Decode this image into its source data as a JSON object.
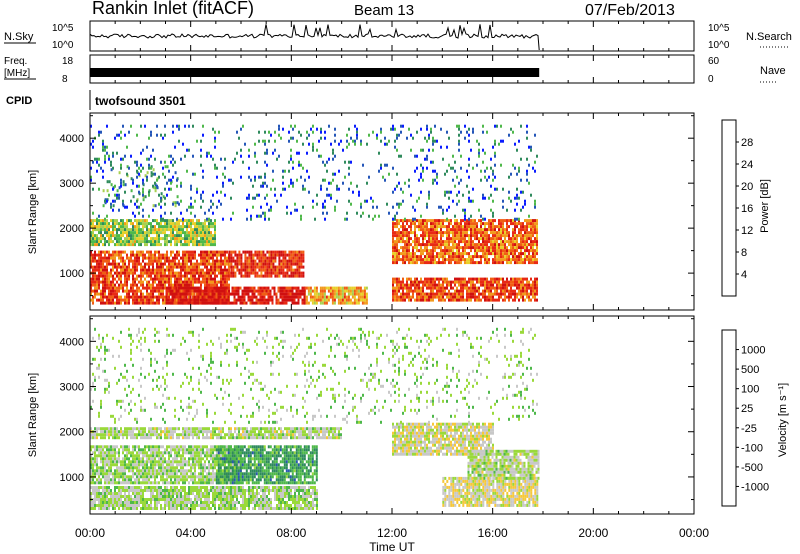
{
  "header": {
    "title": "Rankin Inlet (fitACF)",
    "beam": "Beam 13",
    "date": "07/Feb/2013"
  },
  "time_axis": {
    "label": "Time UT",
    "ticks": [
      "00:00",
      "04:00",
      "08:00",
      "12:00",
      "16:00",
      "20:00",
      "00:00"
    ],
    "tick_hours": [
      0,
      4,
      8,
      12,
      16,
      20,
      24
    ],
    "data_end_hour": 17.85
  },
  "panels": {
    "nsky": {
      "left_label": "N.Sky",
      "right_label": "N.Search",
      "left_ticks": [
        "10^5",
        "10^0"
      ],
      "right_ticks": [
        "10^5",
        "10^0"
      ]
    },
    "freq": {
      "left_label_1": "Freq.",
      "left_label_2": "[MHz]",
      "left_ticks": [
        "18",
        "8"
      ],
      "right_label": "Nave",
      "right_ticks": [
        "60",
        "0"
      ]
    },
    "cpid": {
      "label": "CPID",
      "value": "twofsound 3501"
    }
  },
  "colors": {
    "power": [
      "#0a1cff",
      "#2456b8",
      "#2f8a5c",
      "#4fb84a",
      "#a8d050",
      "#e8d02a",
      "#f29a1c",
      "#f05e14",
      "#e82a14",
      "#d01010"
    ],
    "velocity": [
      "#e41e14",
      "#ee5a14",
      "#f39a1c",
      "#f6c83a",
      "#c8c8c8",
      "#9ad93a",
      "#4eb84a",
      "#2e8a5c",
      "#2a58b0",
      "#1530c8"
    ]
  },
  "chart_data": [
    {
      "type": "heatmap",
      "name": "power",
      "xlabel": "",
      "ylabel": "Slant Range [km]",
      "yticks": [
        1000,
        2000,
        3000,
        4000
      ],
      "ylim": [
        180,
        4560
      ],
      "xlim": [
        0,
        24
      ],
      "colorbar": {
        "label": "Power [dB]",
        "ticks": [
          4,
          8,
          12,
          16,
          20,
          24,
          28
        ],
        "range": [
          0,
          32
        ]
      },
      "regions": [
        {
          "t": [
            0.0,
            5.5
          ],
          "r": [
            300,
            1500
          ],
          "value": 26
        },
        {
          "t": [
            5.5,
            8.5
          ],
          "r": [
            900,
            1500
          ],
          "value": 28
        },
        {
          "t": [
            8.5,
            11.0
          ],
          "r": [
            300,
            700
          ],
          "value": 20
        },
        {
          "t": [
            3.0,
            8.5
          ],
          "r": [
            300,
            700
          ],
          "value": 30
        },
        {
          "t": [
            0.0,
            5.0
          ],
          "r": [
            1650,
            2200
          ],
          "value": 14
        },
        {
          "t": [
            12.0,
            17.8
          ],
          "r": [
            1200,
            2200
          ],
          "value": 24
        },
        {
          "t": [
            12.0,
            17.8
          ],
          "r": [
            400,
            900
          ],
          "value": 26
        },
        {
          "t": [
            0.5,
            3.5
          ],
          "r": [
            2500,
            3400
          ],
          "value": 10
        },
        {
          "t": [
            0.0,
            17.8
          ],
          "r": [
            2200,
            4300
          ],
          "value": 6
        }
      ]
    },
    {
      "type": "heatmap",
      "name": "velocity",
      "xlabel": "Time UT",
      "ylabel": "Slant Range [km]",
      "yticks": [
        1000,
        2000,
        3000,
        4000
      ],
      "ylim": [
        180,
        4560
      ],
      "xlim": [
        0,
        24
      ],
      "colorbar": {
        "label": "Velocity [m s⁻¹]",
        "ticks": [
          "-1000",
          "-500",
          "-100",
          "-25",
          "25",
          "100",
          "500",
          "1000"
        ],
        "range": [
          -2000,
          2000
        ]
      },
      "regions": [
        {
          "t": [
            0.0,
            6.0
          ],
          "r": [
            900,
            1700
          ],
          "value": 150
        },
        {
          "t": [
            5.0,
            9.0
          ],
          "r": [
            900,
            1700
          ],
          "value": 800
        },
        {
          "t": [
            0.0,
            10.0
          ],
          "r": [
            1900,
            2100
          ],
          "value": 0
        },
        {
          "t": [
            12.0,
            16.0
          ],
          "r": [
            1500,
            2200
          ],
          "value": -200
        },
        {
          "t": [
            14.0,
            17.8
          ],
          "r": [
            400,
            1000
          ],
          "value": -300
        },
        {
          "t": [
            15.0,
            17.8
          ],
          "r": [
            1000,
            1600
          ],
          "value": 0
        },
        {
          "t": [
            0.0,
            9.0
          ],
          "r": [
            300,
            800
          ],
          "value": 100
        },
        {
          "t": [
            0.0,
            17.8
          ],
          "r": [
            2200,
            4300
          ],
          "value": 200
        }
      ]
    }
  ]
}
